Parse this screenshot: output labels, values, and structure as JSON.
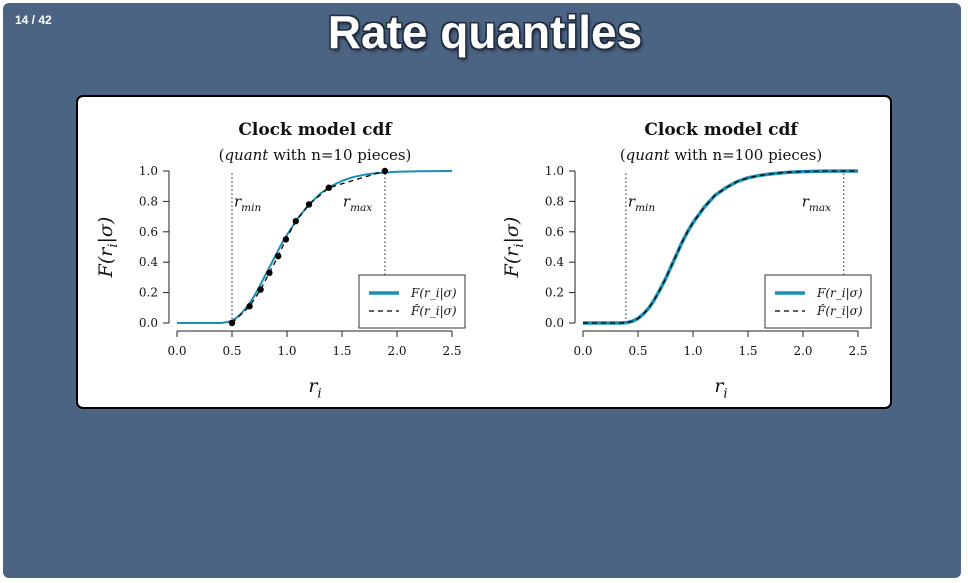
{
  "slide": {
    "counter": "14 / 42",
    "title": "Rate quantiles"
  },
  "chart_data": [
    {
      "type": "line",
      "title": "Clock model cdf",
      "subtitle_pre": "(",
      "subtitle_em": "quant",
      "subtitle_post": " with n=10 pieces)",
      "xlabel": "r_i",
      "ylabel": "F(r_i|σ)",
      "xlim": [
        0,
        2.5
      ],
      "ylim": [
        0,
        1
      ],
      "xticks": [
        "0.0",
        "0.5",
        "1.0",
        "1.5",
        "2.0",
        "2.5"
      ],
      "yticks": [
        "0.0",
        "0.2",
        "0.4",
        "0.6",
        "0.8",
        "1.0"
      ],
      "vlines": [
        {
          "x": 0.5,
          "label": "r_min"
        },
        {
          "x": 1.89,
          "label": "r_max"
        }
      ],
      "legend": {
        "placement": "bottom-right",
        "entries": [
          "F(r_i|σ)",
          "F̂(r_i|σ)"
        ]
      },
      "series": [
        {
          "name": "F(r_i|σ)",
          "style": "solid",
          "color": "#1a8fb5",
          "x": [
            0.0,
            0.4,
            0.45,
            0.5,
            0.55,
            0.6,
            0.65,
            0.7,
            0.75,
            0.8,
            0.85,
            0.9,
            0.95,
            1.0,
            1.1,
            1.2,
            1.3,
            1.4,
            1.5,
            1.6,
            1.7,
            1.8,
            1.9,
            2.0,
            2.2,
            2.5
          ],
          "y": [
            0.0,
            0.0,
            0.005,
            0.015,
            0.04,
            0.075,
            0.12,
            0.175,
            0.24,
            0.31,
            0.38,
            0.45,
            0.52,
            0.58,
            0.69,
            0.78,
            0.85,
            0.9,
            0.935,
            0.96,
            0.975,
            0.985,
            0.99,
            0.995,
            0.998,
            1.0
          ]
        },
        {
          "name": "F̂(r_i|σ)",
          "style": "dashed",
          "color": "#000000",
          "x": [
            0.5,
            0.66,
            0.76,
            0.84,
            0.92,
            0.99,
            1.08,
            1.2,
            1.38,
            1.89
          ],
          "y": [
            0.0,
            0.11,
            0.22,
            0.33,
            0.44,
            0.55,
            0.67,
            0.78,
            0.89,
            1.0
          ]
        }
      ]
    },
    {
      "type": "line",
      "title": "Clock model cdf",
      "subtitle_pre": "(",
      "subtitle_em": "quant",
      "subtitle_post": " with n=100 pieces)",
      "xlabel": "r_i",
      "ylabel": "F(r_i|σ)",
      "xlim": [
        0,
        2.5
      ],
      "ylim": [
        0,
        1
      ],
      "xticks": [
        "0.0",
        "0.5",
        "1.0",
        "1.5",
        "2.0",
        "2.5"
      ],
      "yticks": [
        "0.0",
        "0.2",
        "0.4",
        "0.6",
        "0.8",
        "1.0"
      ],
      "vlines": [
        {
          "x": 0.39,
          "label": "r_min"
        },
        {
          "x": 2.37,
          "label": "r_max"
        }
      ],
      "legend": {
        "placement": "bottom-right",
        "entries": [
          "F(r_i|σ)",
          "F̂(r_i|σ)"
        ]
      },
      "series": [
        {
          "name": "F(r_i|σ)",
          "style": "solid",
          "color": "#1a8fb5",
          "x": [
            0.0,
            0.35,
            0.4,
            0.45,
            0.5,
            0.55,
            0.6,
            0.65,
            0.7,
            0.75,
            0.8,
            0.85,
            0.9,
            0.95,
            1.0,
            1.1,
            1.2,
            1.3,
            1.4,
            1.5,
            1.6,
            1.7,
            1.8,
            1.9,
            2.0,
            2.2,
            2.5
          ],
          "y": [
            0.0,
            0.0,
            0.003,
            0.012,
            0.03,
            0.06,
            0.1,
            0.155,
            0.22,
            0.29,
            0.37,
            0.45,
            0.53,
            0.6,
            0.66,
            0.76,
            0.84,
            0.89,
            0.93,
            0.955,
            0.97,
            0.98,
            0.988,
            0.993,
            0.996,
            0.999,
            1.0
          ]
        },
        {
          "name": "F̂(r_i|σ)",
          "style": "dashed",
          "color": "#000000",
          "x": [
            0.0,
            0.35,
            0.4,
            0.45,
            0.5,
            0.55,
            0.6,
            0.65,
            0.7,
            0.75,
            0.8,
            0.85,
            0.9,
            0.95,
            1.0,
            1.1,
            1.2,
            1.3,
            1.4,
            1.5,
            1.6,
            1.7,
            1.8,
            1.9,
            2.0,
            2.2,
            2.5
          ],
          "y": [
            0.0,
            0.0,
            0.003,
            0.012,
            0.03,
            0.06,
            0.1,
            0.155,
            0.22,
            0.29,
            0.37,
            0.45,
            0.53,
            0.6,
            0.66,
            0.76,
            0.84,
            0.89,
            0.93,
            0.955,
            0.97,
            0.98,
            0.988,
            0.993,
            0.996,
            0.999,
            1.0
          ]
        }
      ]
    }
  ]
}
